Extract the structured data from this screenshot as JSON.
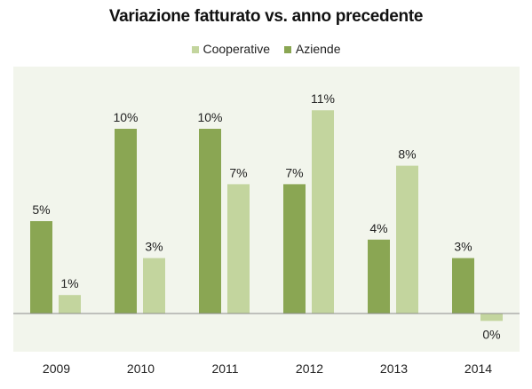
{
  "chart_data": {
    "type": "bar",
    "title": "Variazione fatturato vs. anno precedente",
    "categories": [
      "2009",
      "2010",
      "2011",
      "2012",
      "2013",
      "2014"
    ],
    "series": [
      {
        "name": "Aziende",
        "color": "#8aa653",
        "values": [
          5,
          10,
          10,
          7,
          4,
          3
        ],
        "labels": [
          "5%",
          "10%",
          "10%",
          "7%",
          "4%",
          "3%"
        ]
      },
      {
        "name": "Cooperative",
        "color": "#c3d59e",
        "values": [
          1,
          3,
          7,
          11,
          8,
          -0.4
        ],
        "labels": [
          "1%",
          "3%",
          "7%",
          "11%",
          "8%",
          "0%"
        ]
      }
    ],
    "legend_order": [
      "Cooperative",
      "Aziende"
    ],
    "legend_position": "top",
    "value_format": "percent",
    "ylim": [
      -2,
      12
    ],
    "grid": false,
    "plot_background": "#f2f5ec"
  }
}
